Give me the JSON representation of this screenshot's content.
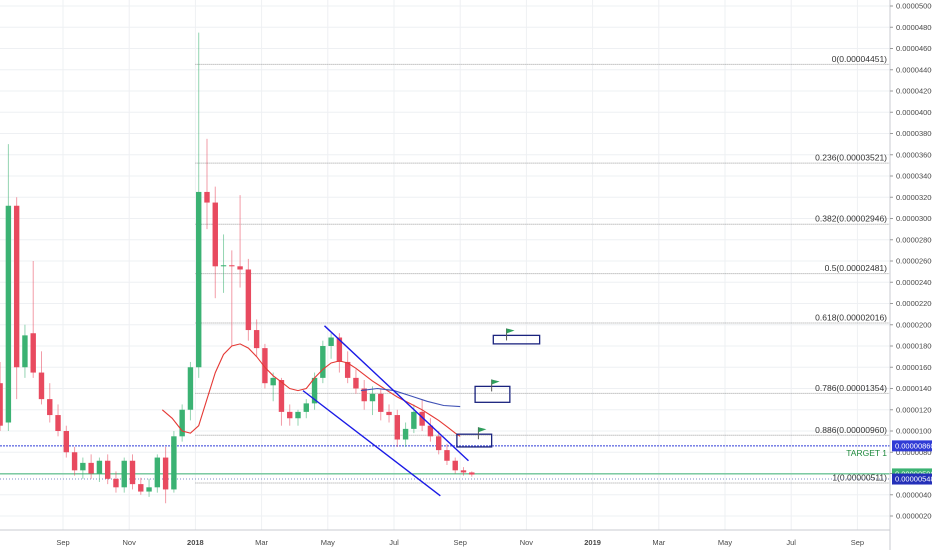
{
  "chart_data": {
    "type": "candlestick",
    "y_axis": {
      "ticks": [
        "0.00005000",
        "0.00004800",
        "0.00004600",
        "0.00004400",
        "0.00004200",
        "0.00004000",
        "0.00003800",
        "0.00003600",
        "0.00003400",
        "0.00003200",
        "0.00003000",
        "0.00002800",
        "0.00002600",
        "0.00002400",
        "0.00002200",
        "0.00002000",
        "0.00001800",
        "0.00001600",
        "0.00001400",
        "0.00001200",
        "0.00001000",
        "0.00000800",
        "0.00000600",
        "0.00000400",
        "0.00000200"
      ],
      "range": [
        1e-06,
        5.05e-05
      ]
    },
    "x_axis": {
      "ticks": [
        {
          "label": "Sep",
          "month_index": 2
        },
        {
          "label": "Nov",
          "month_index": 4
        },
        {
          "label": "2018",
          "month_index": 6,
          "bold": true
        },
        {
          "label": "Mar",
          "month_index": 8
        },
        {
          "label": "May",
          "month_index": 10
        },
        {
          "label": "Jul",
          "month_index": 12
        },
        {
          "label": "Sep",
          "month_index": 14
        },
        {
          "label": "Nov",
          "month_index": 16
        },
        {
          "label": "2019",
          "month_index": 18,
          "bold": true
        },
        {
          "label": "Mar",
          "month_index": 20
        },
        {
          "label": "May",
          "month_index": 22
        },
        {
          "label": "Jul",
          "month_index": 24
        },
        {
          "label": "Sep",
          "month_index": 26
        }
      ]
    },
    "candles": [
      {
        "t": 0.1,
        "o": 1.45e-05,
        "h": 1.65e-05,
        "l": 1e-05,
        "c": 1.05e-05
      },
      {
        "t": 0.35,
        "o": 1.08e-05,
        "h": 3.7e-05,
        "l": 1e-05,
        "c": 3.12e-05
      },
      {
        "t": 0.6,
        "o": 3.12e-05,
        "h": 3.2e-05,
        "l": 1.3e-05,
        "c": 1.6e-05
      },
      {
        "t": 0.85,
        "o": 1.6e-05,
        "h": 2e-05,
        "l": 1.5e-05,
        "c": 1.9e-05
      },
      {
        "t": 1.1,
        "o": 1.92e-05,
        "h": 2.6e-05,
        "l": 1.5e-05,
        "c": 1.55e-05
      },
      {
        "t": 1.35,
        "o": 1.55e-05,
        "h": 1.75e-05,
        "l": 1.25e-05,
        "c": 1.3e-05
      },
      {
        "t": 1.6,
        "o": 1.3e-05,
        "h": 1.45e-05,
        "l": 1.08e-05,
        "c": 1.15e-05
      },
      {
        "t": 1.85,
        "o": 1.15e-05,
        "h": 1.25e-05,
        "l": 9.5e-06,
        "c": 1e-05
      },
      {
        "t": 2.1,
        "o": 1e-05,
        "h": 1.05e-05,
        "l": 7.5e-06,
        "c": 8e-06
      },
      {
        "t": 2.35,
        "o": 8e-06,
        "h": 8.5e-06,
        "l": 5.8e-06,
        "c": 6.3e-06
      },
      {
        "t": 2.6,
        "o": 6.3e-06,
        "h": 7.5e-06,
        "l": 5.5e-06,
        "c": 7e-06
      },
      {
        "t": 2.85,
        "o": 7e-06,
        "h": 7.8e-06,
        "l": 5.5e-06,
        "c": 6e-06
      },
      {
        "t": 3.1,
        "o": 6e-06,
        "h": 7.5e-06,
        "l": 5.2e-06,
        "c": 7.2e-06
      },
      {
        "t": 3.35,
        "o": 7.2e-06,
        "h": 7.8e-06,
        "l": 5e-06,
        "c": 5.5e-06
      },
      {
        "t": 3.6,
        "o": 5.5e-06,
        "h": 6.2e-06,
        "l": 4.2e-06,
        "c": 4.7e-06
      },
      {
        "t": 3.85,
        "o": 4.7e-06,
        "h": 7.5e-06,
        "l": 4.2e-06,
        "c": 7.2e-06
      },
      {
        "t": 4.1,
        "o": 7.2e-06,
        "h": 7.8e-06,
        "l": 4.5e-06,
        "c": 5e-06
      },
      {
        "t": 4.35,
        "o": 5e-06,
        "h": 5.6e-06,
        "l": 4e-06,
        "c": 4.3e-06
      },
      {
        "t": 4.6,
        "o": 4.3e-06,
        "h": 5.5e-06,
        "l": 3.8e-06,
        "c": 4.7e-06
      },
      {
        "t": 4.85,
        "o": 4.7e-06,
        "h": 7.8e-06,
        "l": 4.2e-06,
        "c": 7.5e-06
      },
      {
        "t": 5.1,
        "o": 7.5e-06,
        "h": 8.5e-06,
        "l": 3.2e-06,
        "c": 4.5e-06
      },
      {
        "t": 5.35,
        "o": 4.5e-06,
        "h": 1e-05,
        "l": 4.2e-06,
        "c": 9.5e-06
      },
      {
        "t": 5.6,
        "o": 9.5e-06,
        "h": 1.25e-05,
        "l": 9e-06,
        "c": 1.2e-05
      },
      {
        "t": 5.85,
        "o": 1.2e-05,
        "h": 1.65e-05,
        "l": 1.1e-05,
        "c": 1.6e-05
      },
      {
        "t": 6.1,
        "o": 1.6e-05,
        "h": 4.75e-05,
        "l": 1.5e-05,
        "c": 3.25e-05
      },
      {
        "t": 6.35,
        "o": 3.25e-05,
        "h": 3.75e-05,
        "l": 2.9e-05,
        "c": 3.15e-05
      },
      {
        "t": 6.6,
        "o": 3.15e-05,
        "h": 3.3e-05,
        "l": 2.25e-05,
        "c": 2.55e-05
      },
      {
        "t": 6.85,
        "o": 2.55e-05,
        "h": 2.85e-05,
        "l": 2.3e-05,
        "c": 2.56e-05
      },
      {
        "t": 7.1,
        "o": 2.56e-05,
        "h": 2.7e-05,
        "l": 1.8e-05,
        "c": 2.55e-05
      },
      {
        "t": 7.35,
        "o": 2.55e-05,
        "h": 3.22e-05,
        "l": 2.35e-05,
        "c": 2.52e-05
      },
      {
        "t": 7.6,
        "o": 2.52e-05,
        "h": 2.62e-05,
        "l": 1.85e-05,
        "c": 1.95e-05
      },
      {
        "t": 7.85,
        "o": 1.95e-05,
        "h": 2.05e-05,
        "l": 1.7e-05,
        "c": 1.78e-05
      },
      {
        "t": 8.1,
        "o": 1.78e-05,
        "h": 1.82e-05,
        "l": 1.4e-05,
        "c": 1.45e-05
      },
      {
        "t": 8.35,
        "o": 1.43e-05,
        "h": 1.55e-05,
        "l": 1.28e-05,
        "c": 1.5e-05
      },
      {
        "t": 8.6,
        "o": 1.48e-05,
        "h": 1.5e-05,
        "l": 1.05e-05,
        "c": 1.18e-05
      },
      {
        "t": 8.85,
        "o": 1.18e-05,
        "h": 1.25e-05,
        "l": 1.05e-05,
        "c": 1.12e-05
      },
      {
        "t": 9.1,
        "o": 1.12e-05,
        "h": 1.2e-05,
        "l": 1.05e-05,
        "c": 1.18e-05
      },
      {
        "t": 9.35,
        "o": 1.18e-05,
        "h": 1.3e-05,
        "l": 1.12e-05,
        "c": 1.26e-05
      },
      {
        "t": 9.6,
        "o": 1.26e-05,
        "h": 1.55e-05,
        "l": 1.2e-05,
        "c": 1.5e-05
      },
      {
        "t": 9.85,
        "o": 1.5e-05,
        "h": 1.85e-05,
        "l": 1.45e-05,
        "c": 1.8e-05
      },
      {
        "t": 10.1,
        "o": 1.8e-05,
        "h": 1.92e-05,
        "l": 1.68e-05,
        "c": 1.88e-05
      },
      {
        "t": 10.35,
        "o": 1.88e-05,
        "h": 1.92e-05,
        "l": 1.55e-05,
        "c": 1.65e-05
      },
      {
        "t": 10.6,
        "o": 1.65e-05,
        "h": 1.75e-05,
        "l": 1.45e-05,
        "c": 1.5e-05
      },
      {
        "t": 10.85,
        "o": 1.5e-05,
        "h": 1.58e-05,
        "l": 1.35e-05,
        "c": 1.4e-05
      },
      {
        "t": 11.1,
        "o": 1.4e-05,
        "h": 1.48e-05,
        "l": 1.2e-05,
        "c": 1.28e-05
      },
      {
        "t": 11.35,
        "o": 1.28e-05,
        "h": 1.42e-05,
        "l": 1.15e-05,
        "c": 1.35e-05
      },
      {
        "t": 11.6,
        "o": 1.35e-05,
        "h": 1.4e-05,
        "l": 1.1e-05,
        "c": 1.18e-05
      },
      {
        "t": 11.85,
        "o": 1.18e-05,
        "h": 1.25e-05,
        "l": 1.08e-05,
        "c": 1.15e-05
      },
      {
        "t": 12.1,
        "o": 1.15e-05,
        "h": 1.2e-05,
        "l": 8.5e-06,
        "c": 9.2e-06
      },
      {
        "t": 12.35,
        "o": 9.2e-06,
        "h": 1.08e-05,
        "l": 8.5e-06,
        "c": 1.02e-05
      },
      {
        "t": 12.6,
        "o": 1.02e-05,
        "h": 1.25e-05,
        "l": 9.8e-06,
        "c": 1.18e-05
      },
      {
        "t": 12.85,
        "o": 1.18e-05,
        "h": 1.3e-05,
        "l": 1e-05,
        "c": 1.05e-05
      },
      {
        "t": 13.1,
        "o": 1.05e-05,
        "h": 1.12e-05,
        "l": 9e-06,
        "c": 9.5e-06
      },
      {
        "t": 13.35,
        "o": 9.5e-06,
        "h": 1e-05,
        "l": 7.8e-06,
        "c": 8.2e-06
      },
      {
        "t": 13.6,
        "o": 8.2e-06,
        "h": 8.8e-06,
        "l": 6.8e-06,
        "c": 7.2e-06
      },
      {
        "t": 13.85,
        "o": 7.2e-06,
        "h": 7.5e-06,
        "l": 6e-06,
        "c": 6.3e-06
      },
      {
        "t": 14.1,
        "o": 6.3e-06,
        "h": 6.6e-06,
        "l": 5.8e-06,
        "c": 6.1e-06
      },
      {
        "t": 14.35,
        "o": 6.1e-06,
        "h": 6.2e-06,
        "l": 5.7e-06,
        "c": 5.9e-06
      }
    ],
    "ema_red": [
      [
        5.0,
        1.2e-05
      ],
      [
        5.3,
        1.12e-05
      ],
      [
        5.6,
        1e-05
      ],
      [
        5.85,
        9.8e-06
      ],
      [
        6.1,
        1.05e-05
      ],
      [
        6.35,
        1.3e-05
      ],
      [
        6.6,
        1.55e-05
      ],
      [
        6.85,
        1.72e-05
      ],
      [
        7.1,
        1.8e-05
      ],
      [
        7.35,
        1.82e-05
      ],
      [
        7.6,
        1.78e-05
      ],
      [
        7.85,
        1.7e-05
      ],
      [
        8.1,
        1.6e-05
      ],
      [
        8.35,
        1.52e-05
      ],
      [
        8.6,
        1.46e-05
      ],
      [
        8.85,
        1.4e-05
      ],
      [
        9.1,
        1.38e-05
      ],
      [
        9.35,
        1.4e-05
      ],
      [
        9.6,
        1.5e-05
      ],
      [
        9.85,
        1.58e-05
      ],
      [
        10.1,
        1.64e-05
      ],
      [
        10.35,
        1.66e-05
      ],
      [
        10.6,
        1.64e-05
      ],
      [
        10.85,
        1.59e-05
      ],
      [
        11.1,
        1.53e-05
      ],
      [
        11.35,
        1.47e-05
      ],
      [
        11.6,
        1.42e-05
      ],
      [
        11.85,
        1.37e-05
      ],
      [
        12.1,
        1.32e-05
      ],
      [
        12.35,
        1.28e-05
      ],
      [
        12.6,
        1.24e-05
      ],
      [
        12.85,
        1.2e-05
      ],
      [
        13.1,
        1.15e-05
      ],
      [
        13.35,
        1.1e-05
      ],
      [
        13.6,
        1.04e-05
      ],
      [
        13.85,
        9.8e-06
      ],
      [
        14.0,
        9.5e-06
      ]
    ],
    "ma_blue": [
      [
        11.0,
        1.38e-05
      ],
      [
        11.5,
        1.4e-05
      ],
      [
        12.0,
        1.38e-05
      ],
      [
        12.5,
        1.33e-05
      ],
      [
        13.0,
        1.28e-05
      ],
      [
        13.5,
        1.24e-05
      ],
      [
        14.0,
        1.23e-05
      ]
    ],
    "channel": {
      "upper": [
        [
          9.9,
          1.99e-05
        ],
        [
          14.25,
          7.2e-06
        ]
      ],
      "lower": [
        [
          9.25,
          1.38e-05
        ],
        [
          13.4,
          3.9e-06
        ]
      ]
    },
    "fib_levels": [
      {
        "label": "0(0.00004451)",
        "value": 4.451e-05
      },
      {
        "label": "0.236(0.00003521)",
        "value": 3.521e-05
      },
      {
        "label": "0.382(0.00002946)",
        "value": 2.946e-05
      },
      {
        "label": "0.5(0.00002481)",
        "value": 2.481e-05
      },
      {
        "label": "0.618(0.00002016)",
        "value": 2.016e-05
      },
      {
        "label": "0.786(0.00001354)",
        "value": 1.354e-05
      },
      {
        "label": "0.886(0.00000960)",
        "value": 9.6e-06
      },
      {
        "label": "1(0.00000511)",
        "value": 5.11e-06
      }
    ],
    "fib_start_month": 6.0,
    "target": {
      "label": "TARGET 1",
      "value": 8.6e-06,
      "price_tag": "0.00000860"
    },
    "green_level": {
      "value": 5.96e-06,
      "price_tag": "0.00000596"
    },
    "current_price": {
      "value": 5.48e-06,
      "price_tag": "0.00000548"
    },
    "boxes": [
      {
        "t0": 13.9,
        "t1": 14.95,
        "top": 9.7e-06,
        "bottom": 8.5e-06,
        "flag_t": 14.55,
        "flag_v": 9.6e-06
      },
      {
        "t0": 14.45,
        "t1": 15.5,
        "top": 1.42e-05,
        "bottom": 1.27e-05,
        "flag_t": 14.95,
        "flag_v": 1.41e-05
      },
      {
        "t0": 15.0,
        "t1": 16.4,
        "top": 1.9e-05,
        "bottom": 1.82e-05,
        "flag_t": 15.4,
        "flag_v": 1.89e-05
      }
    ],
    "colors": {
      "up": "#3bb273",
      "down": "#e84a5f",
      "ema": "#e53935",
      "ma": "#3f51b5",
      "channel": "#1a1ae6",
      "fib": "#9e9e9e",
      "target": "#2f3bd6",
      "green_level": "#3bb273",
      "box": "#1a237e",
      "flag": "#2e9e5b"
    }
  }
}
